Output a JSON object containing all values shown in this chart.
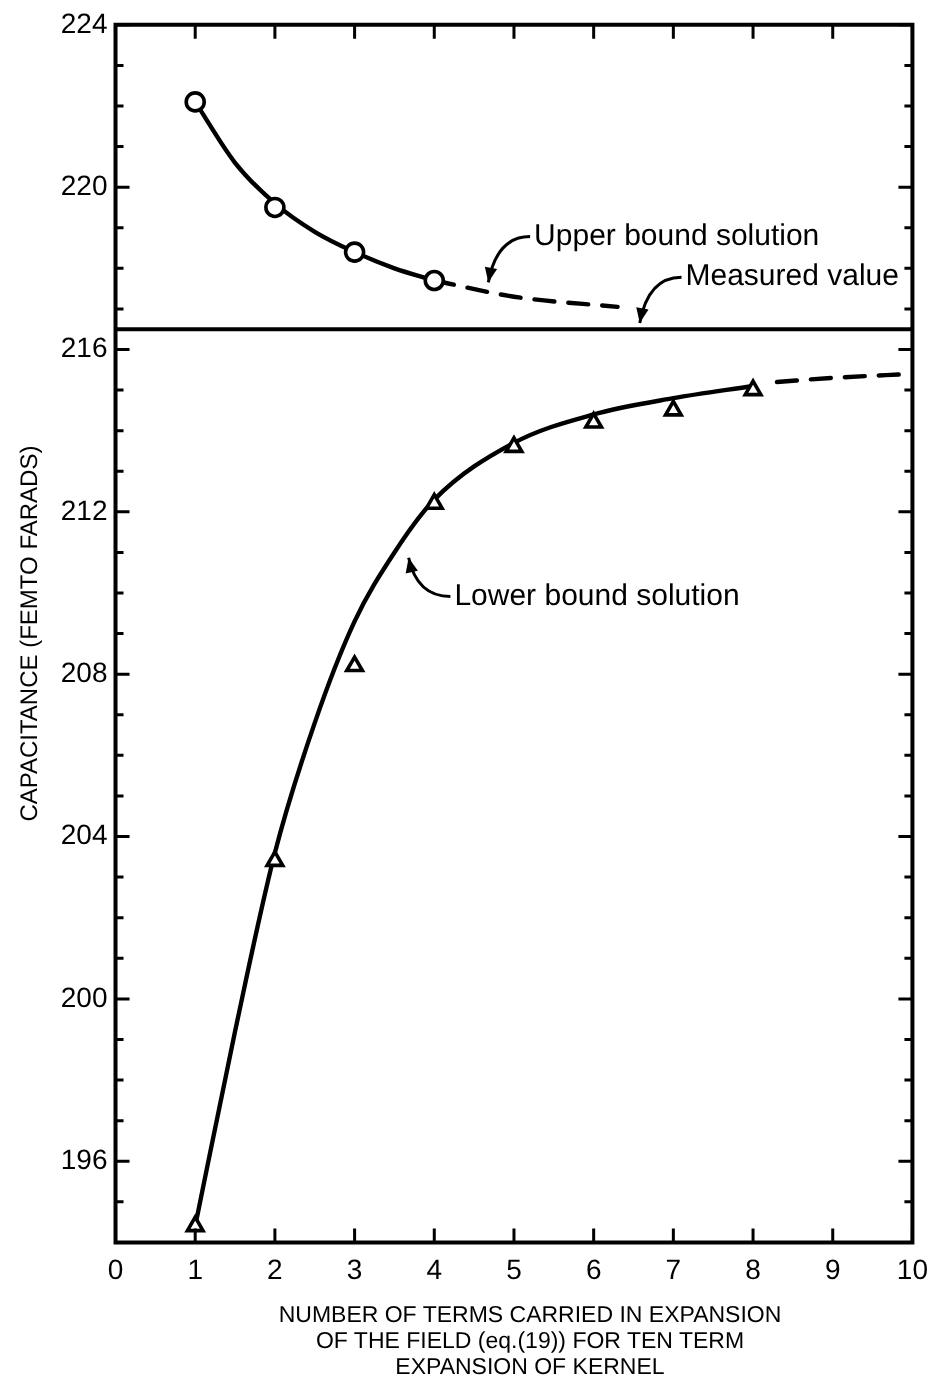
{
  "chart_data": {
    "type": "scatter",
    "ylabel": "CAPACITANCE (FEMTO FARADS)",
    "xlabel": "NUMBER OF TERMS CARRIED IN EXPANSION\nOF THE FIELD (eq.(19)) FOR TEN TERM\nEXPANSION OF KERNEL",
    "xlim": [
      0,
      10
    ],
    "xticks": [
      0,
      1,
      2,
      3,
      4,
      5,
      6,
      7,
      8,
      9,
      10
    ],
    "ylim": [
      194,
      224
    ],
    "yticks": [
      {
        "value": 195,
        "label": null
      },
      196,
      {
        "value": 197,
        "label": null
      },
      {
        "value": 198,
        "label": null
      },
      {
        "value": 199,
        "label": null
      },
      200,
      {
        "value": 201,
        "label": null
      },
      {
        "value": 202,
        "label": null
      },
      {
        "value": 203,
        "label": null
      },
      204,
      {
        "value": 205,
        "label": null
      },
      {
        "value": 206,
        "label": null
      },
      {
        "value": 207,
        "label": null
      },
      208,
      {
        "value": 209,
        "label": null
      },
      {
        "value": 210,
        "label": null
      },
      {
        "value": 211,
        "label": null
      },
      212,
      {
        "value": 213,
        "label": null
      },
      {
        "value": 214,
        "label": null
      },
      {
        "value": 215,
        "label": null
      },
      216,
      {
        "value": 217,
        "label": null
      },
      {
        "value": 218,
        "label": null
      },
      {
        "value": 219,
        "label": null
      },
      220,
      {
        "value": 221,
        "label": null
      },
      {
        "value": 222,
        "label": null
      },
      {
        "value": 223,
        "label": null
      },
      224
    ],
    "grid": false,
    "legend": false,
    "series": [
      {
        "marker": "circle",
        "color": "#000000",
        "x": [
          1,
          2,
          3,
          4
        ],
        "values": [
          222.1,
          219.5,
          218.4,
          217.7
        ]
      },
      {
        "type": "line",
        "marker": "none",
        "line_style": "solid",
        "color": "#000000",
        "x": [
          1,
          1.5,
          2,
          2.5,
          3,
          3.5,
          4
        ],
        "values": [
          222.1,
          220.6,
          219.6,
          218.9,
          218.4,
          218,
          217.7
        ]
      },
      {
        "type": "line",
        "marker": "none",
        "line_style": "dashed",
        "color": "#000000",
        "x": [
          4,
          5,
          6.3
        ],
        "values": [
          217.7,
          217.3,
          217.05
        ]
      },
      {
        "marker": "triangle",
        "color": "#000000",
        "x": [
          1,
          2,
          3,
          4,
          5,
          6,
          7,
          8
        ],
        "values": [
          194.4,
          203.4,
          208.2,
          212.2,
          213.6,
          214.2,
          214.5,
          215.0
        ]
      },
      {
        "type": "line",
        "marker": "none",
        "line_style": "solid",
        "color": "#000000",
        "x": [
          1,
          1.5,
          2,
          2.5,
          3,
          3.5,
          4,
          5,
          6,
          7,
          8
        ],
        "values": [
          194.4,
          199.2,
          203.6,
          206.8,
          209.3,
          211.0,
          212.3,
          213.7,
          214.4,
          214.8,
          215.1
        ]
      },
      {
        "type": "line",
        "marker": "none",
        "line_style": "dashed",
        "color": "#000000",
        "x": [
          8.3,
          9,
          10
        ],
        "values": [
          215.2,
          215.3,
          215.4
        ]
      }
    ],
    "ref_lines": [
      {
        "axis": "y",
        "value": 216.5,
        "color": "#000000",
        "line_style": "solid"
      }
    ],
    "annotations": [
      {
        "text": "Upper bound solution",
        "x": 4.6,
        "y": 217.5
      },
      {
        "text": "Measured value",
        "x": 6.5,
        "y": 216.5
      },
      {
        "text": "Lower bound solution",
        "x": 3.6,
        "y": 211.0
      }
    ]
  }
}
